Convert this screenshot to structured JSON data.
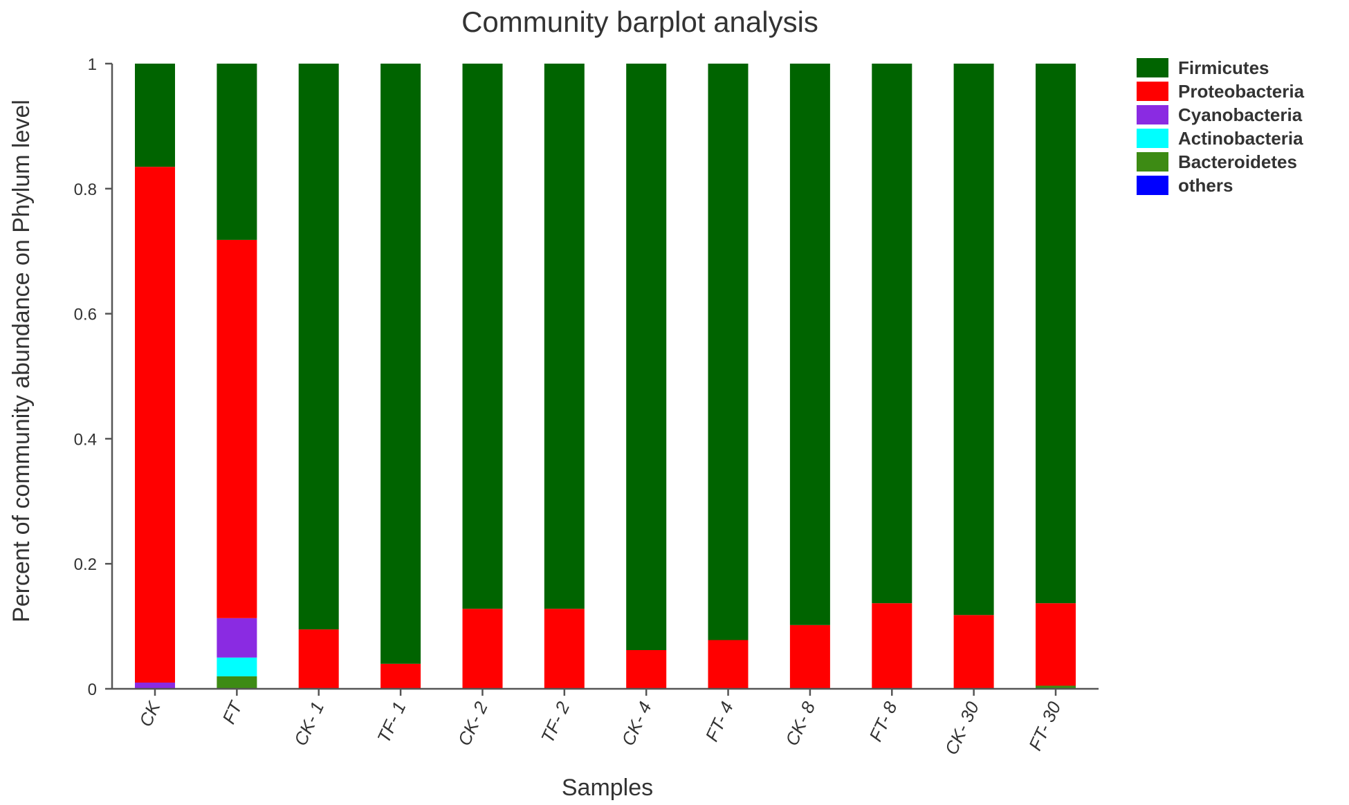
{
  "chart_data": {
    "type": "bar",
    "stacked": true,
    "title": "Community barplot analysis",
    "xlabel": "Samples",
    "ylabel": "Percent of community abundance on Phylum level",
    "ylim": [
      0,
      1
    ],
    "yticks": [
      "0",
      "0.2",
      "0.4",
      "0.6",
      "0.8",
      "1"
    ],
    "grid": false,
    "legend_position": "top-right",
    "categories": [
      "CK",
      "FT",
      "CK- 1",
      "TF- 1",
      "CK- 2",
      "TF- 2",
      "CK- 4",
      "FT- 4",
      "CK- 8",
      "FT- 8",
      "CK- 30",
      "FT- 30"
    ],
    "series": [
      {
        "name": "others",
        "color": "#0000ff",
        "values": [
          0,
          0,
          0,
          0,
          0,
          0,
          0,
          0,
          0,
          0,
          0,
          0
        ]
      },
      {
        "name": "Bacteroidetes",
        "color": "#3d8b14",
        "values": [
          0,
          0.02,
          0,
          0,
          0,
          0,
          0,
          0,
          0,
          0,
          0,
          0.005
        ]
      },
      {
        "name": "Actinobacteria",
        "color": "#00ffff",
        "values": [
          0,
          0.03,
          0,
          0,
          0,
          0,
          0,
          0,
          0,
          0,
          0,
          0
        ]
      },
      {
        "name": "Cyanobacteria",
        "color": "#8a2be2",
        "values": [
          0.01,
          0.063,
          0,
          0,
          0,
          0,
          0,
          0,
          0,
          0,
          0,
          0
        ]
      },
      {
        "name": "Proteobacteria",
        "color": "#ff0000",
        "values": [
          0.825,
          0.605,
          0.095,
          0.04,
          0.128,
          0.128,
          0.062,
          0.078,
          0.102,
          0.137,
          0.118,
          0.132
        ]
      },
      {
        "name": "Firmicutes",
        "color": "#006400",
        "values": [
          0.165,
          0.282,
          0.905,
          0.96,
          0.872,
          0.872,
          0.938,
          0.922,
          0.898,
          0.863,
          0.882,
          0.863
        ]
      }
    ],
    "legend_order": [
      "Firmicutes",
      "Proteobacteria",
      "Cyanobacteria",
      "Actinobacteria",
      "Bacteroidetes",
      "others"
    ]
  }
}
